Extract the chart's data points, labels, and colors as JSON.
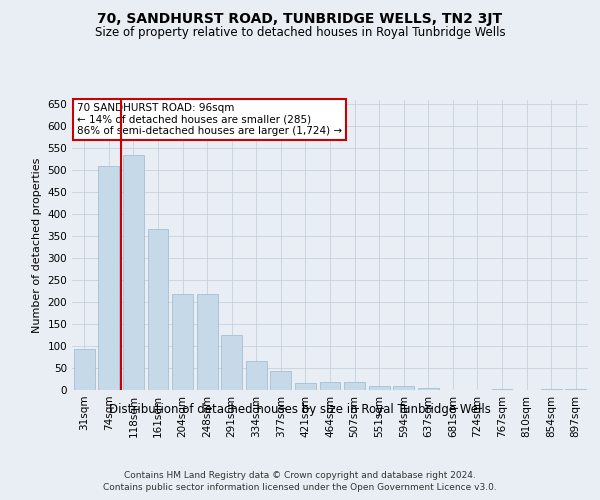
{
  "title": "70, SANDHURST ROAD, TUNBRIDGE WELLS, TN2 3JT",
  "subtitle": "Size of property relative to detached houses in Royal Tunbridge Wells",
  "xlabel": "Distribution of detached houses by size in Royal Tunbridge Wells",
  "ylabel": "Number of detached properties",
  "footer_line1": "Contains HM Land Registry data © Crown copyright and database right 2024.",
  "footer_line2": "Contains public sector information licensed under the Open Government Licence v3.0.",
  "annotation_line1": "70 SANDHURST ROAD: 96sqm",
  "annotation_line2": "← 14% of detached houses are smaller (285)",
  "annotation_line3": "86% of semi-detached houses are larger (1,724) →",
  "bar_labels": [
    "31sqm",
    "74sqm",
    "118sqm",
    "161sqm",
    "204sqm",
    "248sqm",
    "291sqm",
    "334sqm",
    "377sqm",
    "421sqm",
    "464sqm",
    "507sqm",
    "551sqm",
    "594sqm",
    "637sqm",
    "681sqm",
    "724sqm",
    "767sqm",
    "810sqm",
    "854sqm",
    "897sqm"
  ],
  "bar_values": [
    93,
    510,
    535,
    367,
    219,
    219,
    125,
    67,
    43,
    17,
    18,
    19,
    9,
    9,
    4,
    0,
    0,
    3,
    0,
    2,
    2
  ],
  "bar_color": "#c6d9e8",
  "bar_edge_color": "#9ab8d0",
  "red_line_index": 1.5,
  "annotation_box_facecolor": "#ffffff",
  "annotation_box_edgecolor": "#cc0000",
  "background_color": "#e8eef4",
  "plot_bg_color": "#e8eef4",
  "grid_color": "#c0ccd8",
  "ylim": [
    0,
    660
  ],
  "yticks": [
    0,
    50,
    100,
    150,
    200,
    250,
    300,
    350,
    400,
    450,
    500,
    550,
    600,
    650
  ],
  "title_fontsize": 10,
  "subtitle_fontsize": 8.5,
  "ylabel_fontsize": 8,
  "xlabel_fontsize": 8.5,
  "tick_fontsize": 7.5,
  "footer_fontsize": 6.5,
  "ann_fontsize": 7.5
}
